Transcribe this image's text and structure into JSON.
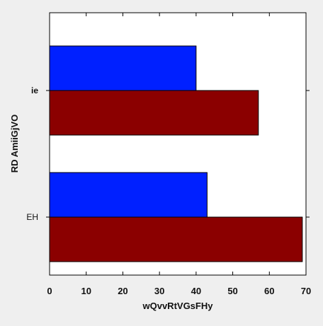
{
  "chart_data": {
    "type": "bar",
    "orientation": "horizontal",
    "title": "",
    "xlabel": "wQvvRtVGsFHy",
    "ylabel": "RD AmiiGjVO",
    "categories": [
      "ie",
      "EH"
    ],
    "series": [
      {
        "color": "#0020ff",
        "values": [
          40,
          43
        ]
      },
      {
        "color": "#8b0000",
        "values": [
          57,
          69
        ]
      }
    ],
    "xlim": [
      0,
      70
    ],
    "xticks": [
      0,
      10,
      20,
      30,
      40,
      50,
      60,
      70
    ],
    "grid": false,
    "legend": "none"
  }
}
